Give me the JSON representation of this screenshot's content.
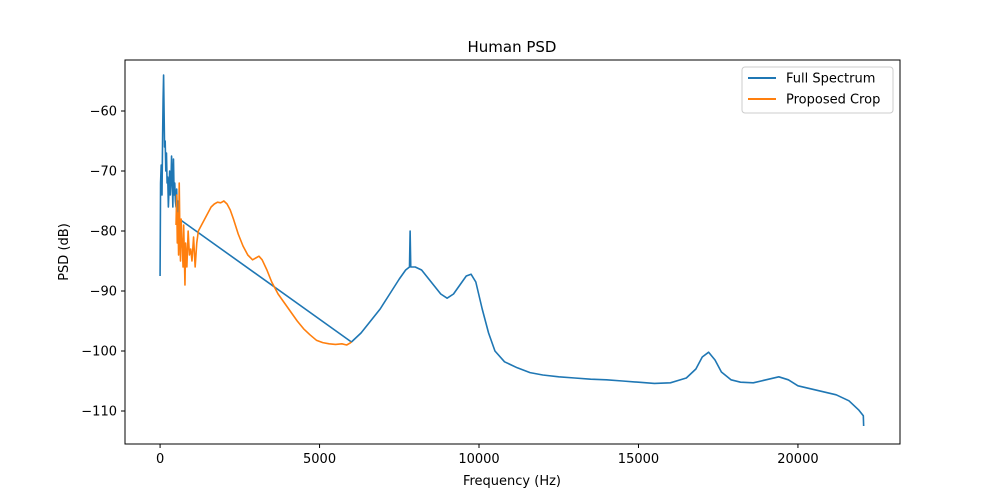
{
  "chart_data": {
    "type": "line",
    "title": "Human PSD",
    "xlabel": "Frequency (Hz)",
    "ylabel": "PSD (dB)",
    "xlim": [
      -1100,
      23200
    ],
    "ylim": [
      -115.5,
      -51.5
    ],
    "xticks": [
      0,
      5000,
      10000,
      15000,
      20000
    ],
    "xtick_labels": [
      "0",
      "5000",
      "10000",
      "15000",
      "20000"
    ],
    "yticks": [
      -110,
      -100,
      -90,
      -80,
      -70,
      -60
    ],
    "ytick_labels": [
      "−110",
      "−100",
      "−90",
      "−80",
      "−70",
      "−60"
    ],
    "grid": false,
    "legend_position": "top-right",
    "series": [
      {
        "name": "Full Spectrum",
        "color": "#1f77b4",
        "points": [
          [
            0,
            -87.5
          ],
          [
            15,
            -72
          ],
          [
            35,
            -69
          ],
          [
            60,
            -74
          ],
          [
            80,
            -64
          ],
          [
            95,
            -58
          ],
          [
            110,
            -54
          ],
          [
            125,
            -60
          ],
          [
            140,
            -66
          ],
          [
            160,
            -65
          ],
          [
            180,
            -70
          ],
          [
            200,
            -67
          ],
          [
            220,
            -72
          ],
          [
            240,
            -71
          ],
          [
            260,
            -76
          ],
          [
            280,
            -73
          ],
          [
            300,
            -70
          ],
          [
            320,
            -74
          ],
          [
            340,
            -72
          ],
          [
            360,
            -67.5
          ],
          [
            380,
            -71
          ],
          [
            400,
            -76
          ],
          [
            420,
            -68
          ],
          [
            440,
            -74
          ],
          [
            460,
            -72
          ],
          [
            480,
            -75
          ],
          [
            500,
            -76
          ],
          [
            520,
            -73
          ],
          [
            540,
            -77
          ],
          [
            560,
            -75
          ],
          [
            580,
            -77
          ],
          [
            600,
            -78
          ],
          [
            6000,
            -98.5
          ],
          [
            6300,
            -97
          ],
          [
            6600,
            -95
          ],
          [
            6900,
            -93
          ],
          [
            7200,
            -90.5
          ],
          [
            7500,
            -88
          ],
          [
            7700,
            -86.5
          ],
          [
            7820,
            -86
          ],
          [
            7840,
            -80
          ],
          [
            7860,
            -86
          ],
          [
            8000,
            -86
          ],
          [
            8200,
            -86.5
          ],
          [
            8500,
            -88.5
          ],
          [
            8800,
            -90.5
          ],
          [
            9000,
            -91.2
          ],
          [
            9200,
            -90.5
          ],
          [
            9400,
            -89
          ],
          [
            9600,
            -87.5
          ],
          [
            9750,
            -87.2
          ],
          [
            9900,
            -88.5
          ],
          [
            10100,
            -93
          ],
          [
            10300,
            -97
          ],
          [
            10500,
            -100
          ],
          [
            10800,
            -101.8
          ],
          [
            11200,
            -102.8
          ],
          [
            11600,
            -103.6
          ],
          [
            12000,
            -104
          ],
          [
            12500,
            -104.3
          ],
          [
            13000,
            -104.5
          ],
          [
            13500,
            -104.7
          ],
          [
            14000,
            -104.8
          ],
          [
            14500,
            -105
          ],
          [
            15000,
            -105.2
          ],
          [
            15500,
            -105.4
          ],
          [
            16000,
            -105.3
          ],
          [
            16500,
            -104.5
          ],
          [
            16800,
            -103
          ],
          [
            17000,
            -101
          ],
          [
            17200,
            -100.2
          ],
          [
            17400,
            -101.5
          ],
          [
            17600,
            -103.5
          ],
          [
            17900,
            -104.8
          ],
          [
            18200,
            -105.2
          ],
          [
            18600,
            -105.3
          ],
          [
            19000,
            -104.8
          ],
          [
            19400,
            -104.3
          ],
          [
            19700,
            -104.8
          ],
          [
            20000,
            -105.8
          ],
          [
            20400,
            -106.3
          ],
          [
            20800,
            -106.8
          ],
          [
            21200,
            -107.3
          ],
          [
            21600,
            -108.3
          ],
          [
            21900,
            -109.8
          ],
          [
            22050,
            -110.8
          ],
          [
            22060,
            -112.5
          ]
        ]
      },
      {
        "name": "Proposed Crop",
        "color": "#ff7f0e",
        "points": [
          [
            500,
            -79
          ],
          [
            520,
            -74
          ],
          [
            540,
            -82
          ],
          [
            560,
            -77
          ],
          [
            580,
            -84
          ],
          [
            600,
            -72
          ],
          [
            620,
            -80
          ],
          [
            640,
            -85
          ],
          [
            660,
            -78
          ],
          [
            680,
            -81
          ],
          [
            700,
            -83
          ],
          [
            720,
            -86
          ],
          [
            740,
            -79
          ],
          [
            760,
            -84
          ],
          [
            780,
            -89
          ],
          [
            800,
            -82
          ],
          [
            840,
            -86
          ],
          [
            880,
            -80
          ],
          [
            920,
            -84
          ],
          [
            960,
            -83
          ],
          [
            1000,
            -85
          ],
          [
            1050,
            -81
          ],
          [
            1100,
            -86
          ],
          [
            1150,
            -82
          ],
          [
            1200,
            -80
          ],
          [
            1300,
            -79
          ],
          [
            1400,
            -78
          ],
          [
            1500,
            -77
          ],
          [
            1600,
            -76
          ],
          [
            1700,
            -75.5
          ],
          [
            1800,
            -75.2
          ],
          [
            1900,
            -75.3
          ],
          [
            2000,
            -75
          ],
          [
            2100,
            -75.5
          ],
          [
            2200,
            -76.5
          ],
          [
            2300,
            -78
          ],
          [
            2450,
            -80.5
          ],
          [
            2600,
            -82.5
          ],
          [
            2750,
            -84
          ],
          [
            2900,
            -84.8
          ],
          [
            3000,
            -84.5
          ],
          [
            3100,
            -84.2
          ],
          [
            3200,
            -84.8
          ],
          [
            3350,
            -86.5
          ],
          [
            3500,
            -88.5
          ],
          [
            3700,
            -90.5
          ],
          [
            3900,
            -92
          ],
          [
            4100,
            -93.5
          ],
          [
            4300,
            -95
          ],
          [
            4500,
            -96.3
          ],
          [
            4700,
            -97.3
          ],
          [
            4900,
            -98.2
          ],
          [
            5100,
            -98.6
          ],
          [
            5300,
            -98.8
          ],
          [
            5500,
            -98.9
          ],
          [
            5700,
            -98.8
          ],
          [
            5850,
            -99
          ],
          [
            5950,
            -98.7
          ],
          [
            6000,
            -98.5
          ]
        ]
      }
    ]
  }
}
